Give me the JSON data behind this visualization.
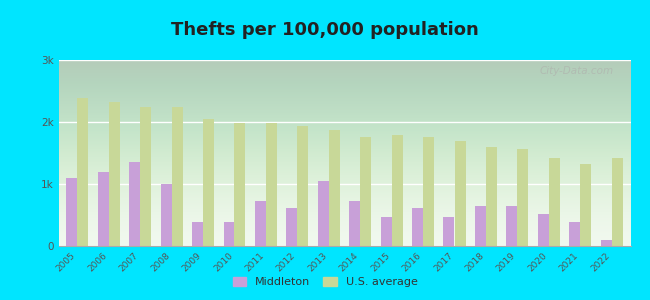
{
  "title": "Thefts per 100,000 population",
  "years": [
    2005,
    2006,
    2007,
    2008,
    2009,
    2010,
    2011,
    2012,
    2013,
    2014,
    2015,
    2016,
    2017,
    2018,
    2019,
    2020,
    2021,
    2022
  ],
  "middleton": [
    1100,
    1200,
    1350,
    1000,
    380,
    380,
    720,
    620,
    1050,
    720,
    470,
    620,
    470,
    650,
    650,
    520,
    380,
    100
  ],
  "us_average": [
    2380,
    2330,
    2250,
    2250,
    2050,
    1980,
    1980,
    1930,
    1870,
    1760,
    1790,
    1760,
    1700,
    1600,
    1560,
    1420,
    1320,
    1420
  ],
  "middleton_color": "#c8a0d8",
  "us_average_color": "#c8d898",
  "plot_bg_top": "#edf7e8",
  "plot_bg_bottom": "#f5faf2",
  "outer_background": "#00e5ff",
  "ylim": [
    0,
    3000
  ],
  "yticks": [
    0,
    1000,
    2000,
    3000
  ],
  "ytick_labels": [
    "0",
    "1k",
    "2k",
    "3k"
  ],
  "title_fontsize": 13,
  "watermark": "City-Data.com"
}
